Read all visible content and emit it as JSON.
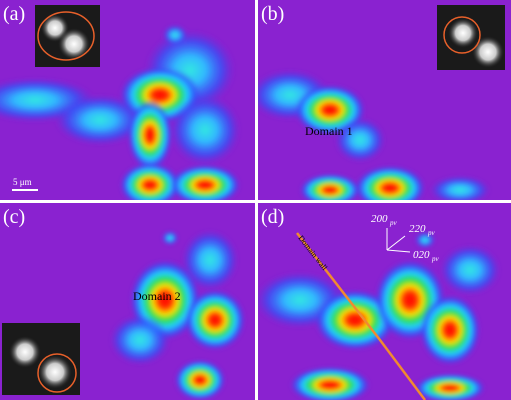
{
  "panels": [
    {
      "label": "(a)",
      "scale_bar": "5 μm"
    },
    {
      "label": "(b)",
      "annotation": "Domain 1"
    },
    {
      "label": "(c)",
      "annotation": "Domain 2"
    },
    {
      "label": "(d)",
      "annotation": "Domain wall",
      "axes": [
        {
          "label": "200",
          "subscript": "pv"
        },
        {
          "label": "220",
          "subscript": "pv"
        },
        {
          "label": "020",
          "subscript": "pv"
        }
      ]
    }
  ]
}
